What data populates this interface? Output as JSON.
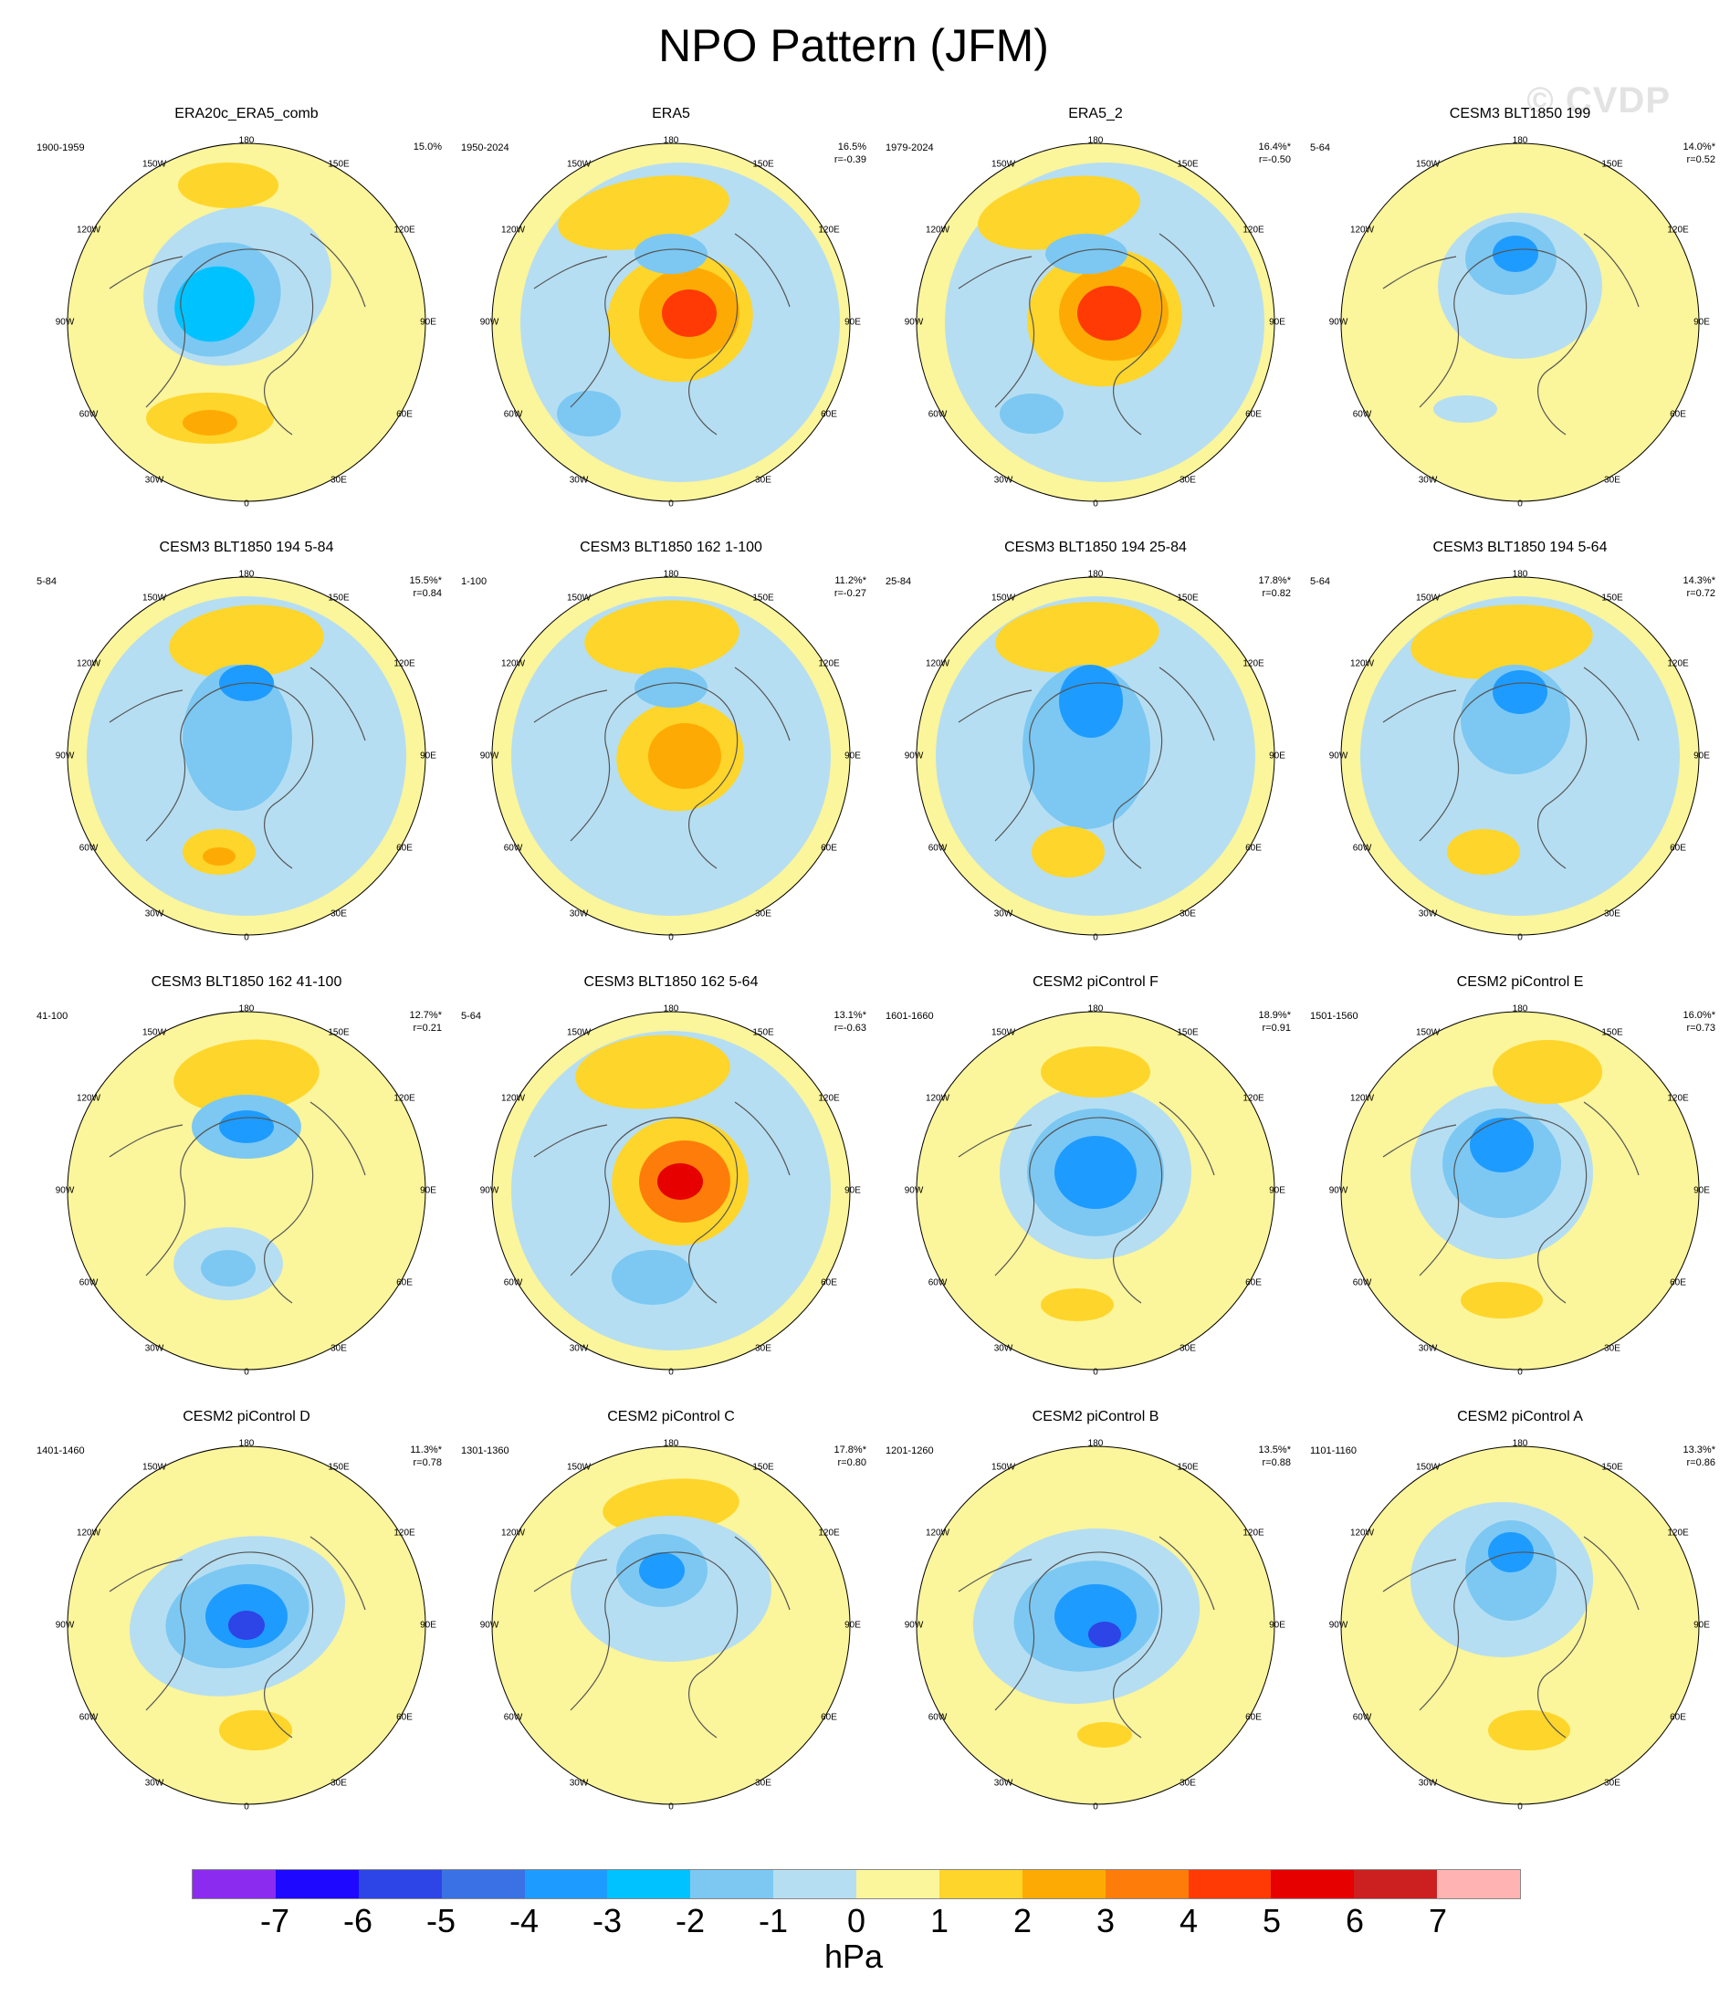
{
  "title": "NPO Pattern (JFM)",
  "watermark": "© CVDP",
  "lon_labels": [
    "180",
    "150E",
    "120E",
    "90E",
    "60E",
    "30E",
    "0",
    "30W",
    "60W",
    "90W",
    "120W",
    "150W"
  ],
  "colors": {
    "neg_7": "#8c2bf0",
    "neg_6": "#1e08ff",
    "neg_5": "#2d44e6",
    "neg_4": "#3a72e6",
    "neg_3": "#1e9bff",
    "neg_2": "#00c2ff",
    "neg_1": "#7cc8f2",
    "zero_neg": "#b6def2",
    "zero_pos": "#fbf59b",
    "pos_1": "#fed52a",
    "pos_2": "#fdab04",
    "pos_3": "#fe7d0a",
    "pos_4": "#ff3a04",
    "pos_5": "#e60000",
    "pos_6": "#cc1f1f",
    "pos_7": "#ffb3b3",
    "coastline": "#555555"
  },
  "panels": [
    {
      "title": "ERA20c_ERA5_comb",
      "years": "1900-1959",
      "pct": "15.0%",
      "r": ""
    },
    {
      "title": "ERA5",
      "years": "1950-2024",
      "pct": "16.5%",
      "r": "r=-0.39"
    },
    {
      "title": "ERA5_2",
      "years": "1979-2024",
      "pct": "16.4%*",
      "r": "r=-0.50"
    },
    {
      "title": "CESM3 BLT1850 199",
      "years": "5-64",
      "pct": "14.0%*",
      "r": "r=0.52"
    },
    {
      "title": "CESM3 BLT1850 194 5-84",
      "years": "5-84",
      "pct": "15.5%*",
      "r": "r=0.84"
    },
    {
      "title": "CESM3 BLT1850 162 1-100",
      "years": "1-100",
      "pct": "11.2%*",
      "r": "r=-0.27"
    },
    {
      "title": "CESM3 BLT1850 194 25-84",
      "years": "25-84",
      "pct": "17.8%*",
      "r": "r=0.82"
    },
    {
      "title": "CESM3 BLT1850 194 5-64",
      "years": "5-64",
      "pct": "14.3%*",
      "r": "r=0.72"
    },
    {
      "title": "CESM3 BLT1850 162 41-100",
      "years": "41-100",
      "pct": "12.7%*",
      "r": "r=0.21"
    },
    {
      "title": "CESM3 BLT1850 162 5-64",
      "years": "5-64",
      "pct": "13.1%*",
      "r": "r=-0.63"
    },
    {
      "title": "CESM2 piControl F",
      "years": "1601-1660",
      "pct": "18.9%*",
      "r": "r=0.91"
    },
    {
      "title": "CESM2 piControl E",
      "years": "1501-1560",
      "pct": "16.0%*",
      "r": "r=0.73"
    },
    {
      "title": "CESM2 piControl D",
      "years": "1401-1460",
      "pct": "11.3%*",
      "r": "r=0.78"
    },
    {
      "title": "CESM2 piControl C",
      "years": "1301-1360",
      "pct": "17.8%*",
      "r": "r=0.80"
    },
    {
      "title": "CESM2 piControl B",
      "years": "1201-1260",
      "pct": "13.5%*",
      "r": "r=0.88"
    },
    {
      "title": "CESM2 piControl A",
      "years": "1101-1160",
      "pct": "13.3%*",
      "r": "r=0.86"
    }
  ],
  "colorbar": {
    "labels": [
      "-7",
      "-6",
      "-5",
      "-4",
      "-3",
      "-2",
      "-1",
      "0",
      "1",
      "2",
      "3",
      "4",
      "5",
      "6",
      "7"
    ],
    "units": "hPa"
  }
}
